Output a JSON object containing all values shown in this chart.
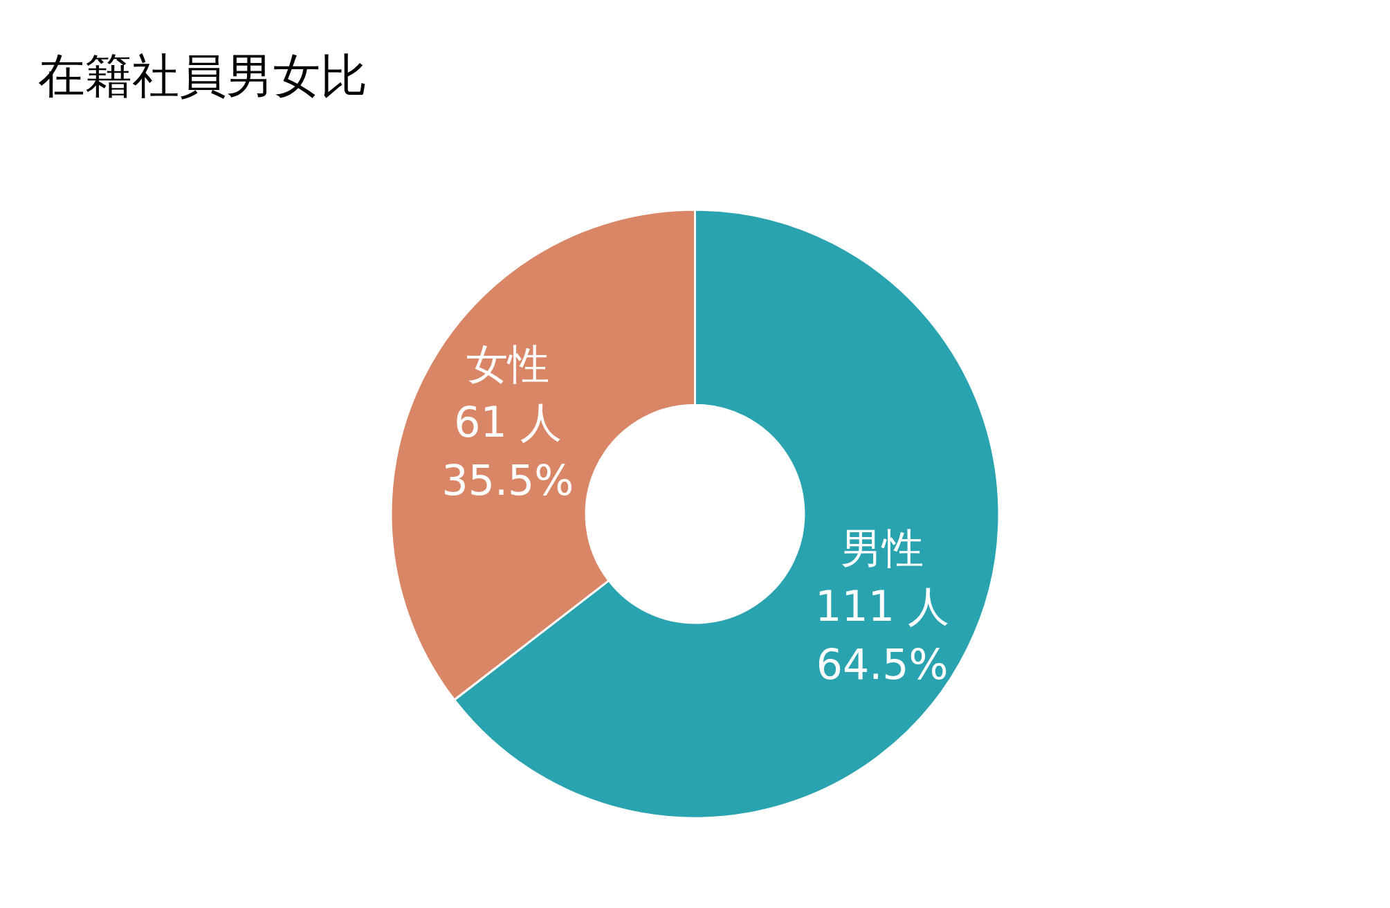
{
  "chart_data": {
    "type": "donut",
    "title": "在籍社員男女比",
    "categories": [
      "男性",
      "女性"
    ],
    "values": [
      111,
      61
    ],
    "value_labels": [
      "111 人\n64.5%",
      "61 人\n35.5%"
    ],
    "colors": [
      "#2aa3b1",
      "#d98667"
    ],
    "legend": false
  }
}
